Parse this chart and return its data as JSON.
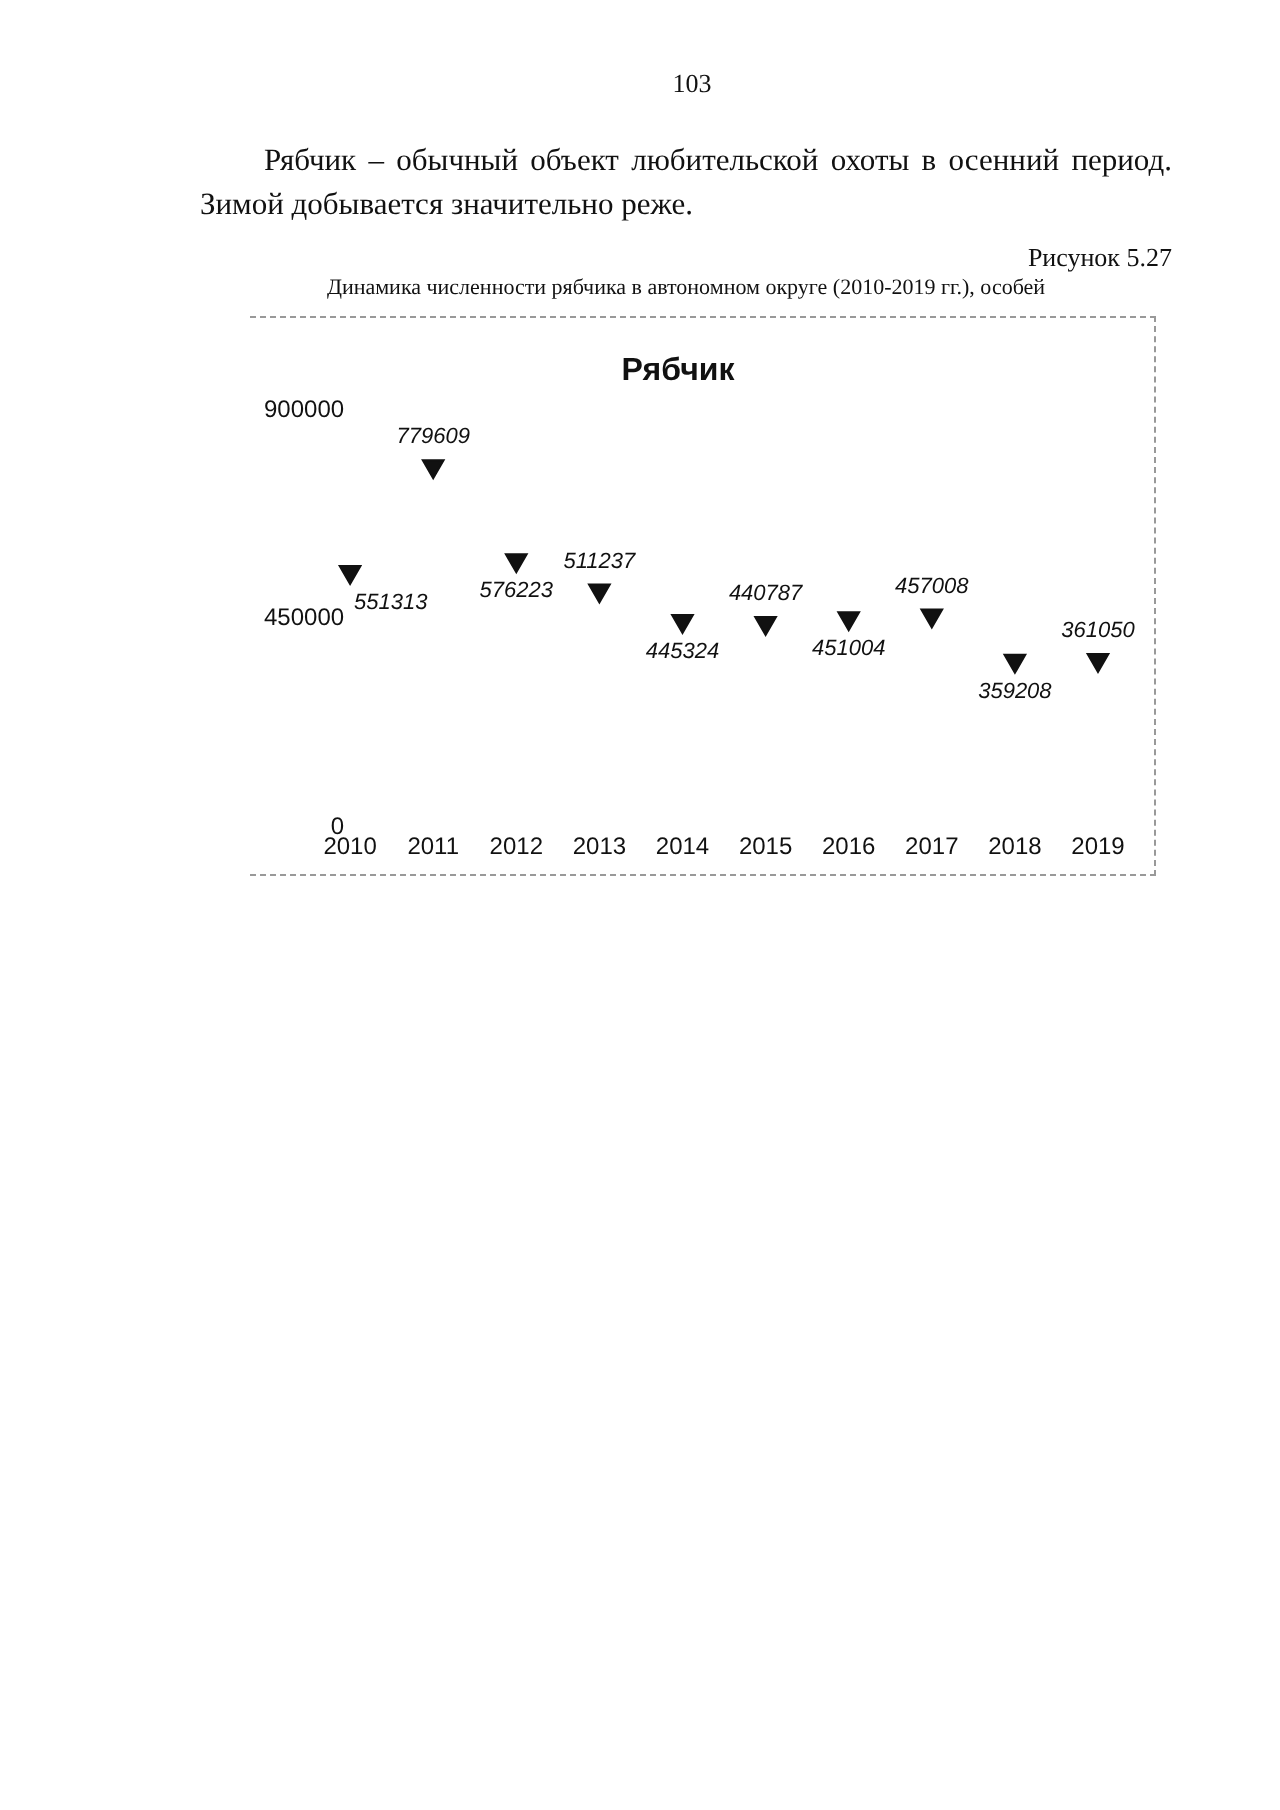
{
  "chart_data": {
    "type": "scatter",
    "title": "Рябчик",
    "subtitle": "Динамика численности рябчика в автономном округе (2010-2019 гг.), особей",
    "annotations": [
      "103",
      "Рябчик – обычный объект любительской охоты в осенний период. Зимой добывается значительно реже.",
      "Рисунок 5.27"
    ],
    "categories": [
      "2010",
      "2011",
      "2012",
      "2013",
      "2014",
      "2015",
      "2016",
      "2017",
      "2018",
      "2019"
    ],
    "values": [
      551313,
      779609,
      576223,
      511237,
      445324,
      440787,
      451004,
      457008,
      359208,
      361050
    ],
    "color": "#111111",
    "marker": "triangle",
    "data_labels": true,
    "grid": false,
    "legend": false,
    "ylim": [
      0,
      900000
    ],
    "yticks": [
      0,
      450000,
      900000
    ]
  }
}
